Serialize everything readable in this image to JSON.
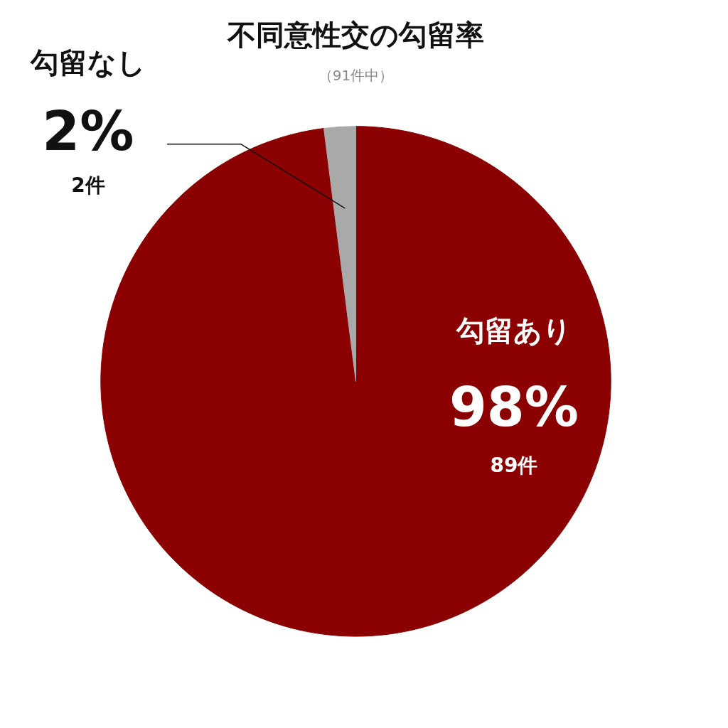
{
  "chart_data": {
    "type": "pie",
    "title": "不同意性交の勾留率",
    "subtitle": "（91件中）",
    "categories": [
      "勾留あり",
      "勾留なし"
    ],
    "values": [
      98,
      2
    ],
    "colors": [
      "#8b0000",
      "#a9a9a9"
    ],
    "value_labels": [
      "98%",
      "2%"
    ],
    "annotations": [
      "89件",
      "2件"
    ],
    "legend": false
  }
}
